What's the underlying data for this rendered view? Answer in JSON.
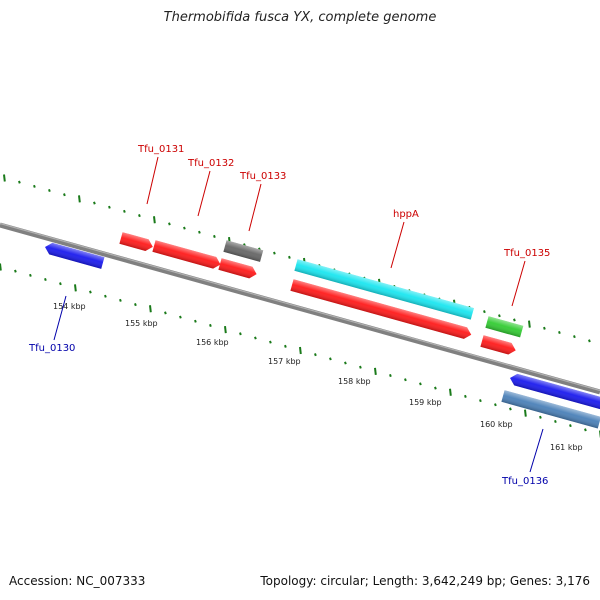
{
  "title": "Thermobifida fusca YX, complete genome",
  "footer": {
    "accession": "Accession: NC_007333",
    "stats": "Topology: circular; Length: 3,642,249 bp; Genes: 3,176"
  },
  "colors": {
    "backbone": "#888888",
    "tick": "#1a7a1a",
    "label_forward": "#cc0000",
    "label_reverse": "#0000aa",
    "gene_red": "#ff1a1a",
    "gene_cyan": "#1ae6f0",
    "gene_gray": "#666666",
    "gene_green": "#33cc33",
    "gene_blue": "#1a1aee",
    "gene_steel": "#4a80b8"
  },
  "scale_labels": [
    "154 kbp",
    "155 kbp",
    "156 kbp",
    "157 kbp",
    "158 kbp",
    "159 kbp",
    "160 kbp",
    "161 kbp"
  ],
  "gene_labels": {
    "tfu_0130": "Tfu_0130",
    "tfu_0131": "Tfu_0131",
    "tfu_0132": "Tfu_0132",
    "tfu_0133": "Tfu_0133",
    "hppa": "hppA",
    "tfu_0135": "Tfu_0135",
    "tfu_0136": "Tfu_0136"
  }
}
